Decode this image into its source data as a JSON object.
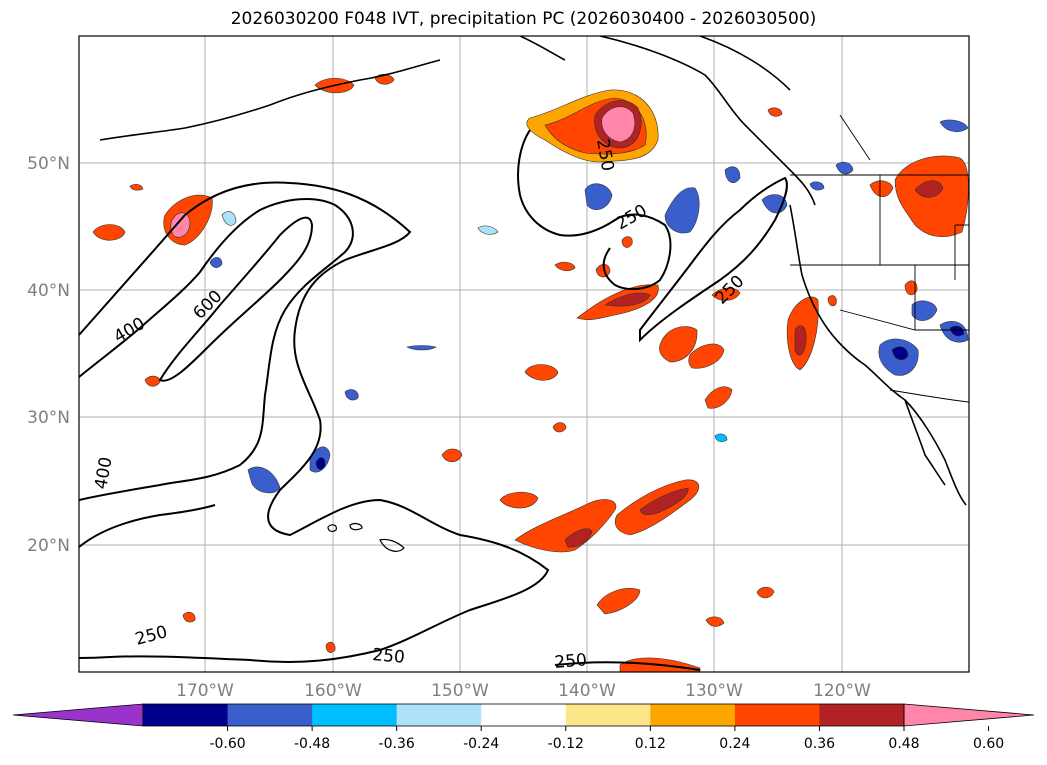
{
  "title": "2026030200 F048 IVT, precipitation PC (2026030400 - 2026030500)",
  "lat_labels": [
    "50°N",
    "40°N",
    "30°N",
    "20°N"
  ],
  "lon_labels": [
    "170°W",
    "160°W",
    "150°W",
    "140°W",
    "130°W",
    "120°W"
  ],
  "contour_labels": [
    "400",
    "600",
    "250",
    "250",
    "250",
    "250",
    "400",
    "250",
    "250",
    "250"
  ],
  "colorbar": {
    "ticks": [
      "-0.60",
      "-0.48",
      "-0.36",
      "-0.24",
      "-0.12",
      "0.12",
      "0.24",
      "0.36",
      "0.48",
      "0.60"
    ],
    "colors": [
      "#9933cc",
      "#00008b",
      "#3a5fcd",
      "#00bfff",
      "#aee2f8",
      "#ffffff",
      "#fde58a",
      "#ffa500",
      "#ff4500",
      "#b22222",
      "#ff85a9"
    ]
  },
  "colors": {
    "grid": "#b0b0b0",
    "coast": "#000000",
    "contour": "#000000",
    "label_gray": "#7f7f7f"
  }
}
